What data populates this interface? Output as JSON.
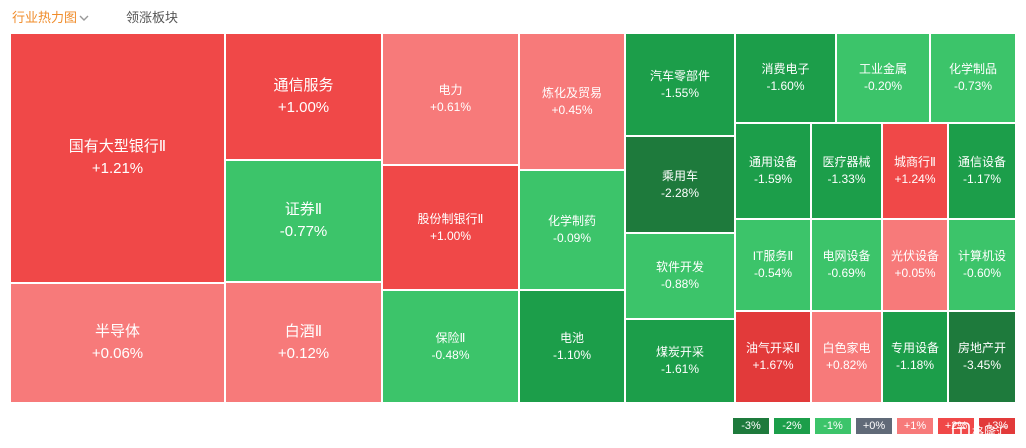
{
  "header": {
    "tab_heatmap": "行业热力图",
    "tab_leaders": "领涨板块"
  },
  "icons": {
    "dropdown": "chevron-down-icon",
    "watermark": "gelonghui-logo"
  },
  "colors": {
    "down_3": "#1e7a3c",
    "down_2": "#1c9e4a",
    "down_1": "#3cc46a",
    "flat": "#606a78",
    "up_1": "#f77a7a",
    "up_2": "#f04848",
    "up_3": "#e23a3a",
    "accent": "#f08c2a"
  },
  "chart_data": {
    "type": "treemap",
    "title": "",
    "items": [
      {
        "name": "国有大型银行Ⅱ",
        "value": "+1.21%",
        "change": 1.21
      },
      {
        "name": "半导体",
        "value": "+0.06%",
        "change": 0.06
      },
      {
        "name": "通信服务",
        "value": "+1.00%",
        "change": 1.0
      },
      {
        "name": "证券Ⅱ",
        "value": "-0.77%",
        "change": -0.77
      },
      {
        "name": "白酒Ⅱ",
        "value": "+0.12%",
        "change": 0.12
      },
      {
        "name": "电力",
        "value": "+0.61%",
        "change": 0.61
      },
      {
        "name": "炼化及贸易",
        "value": "+0.45%",
        "change": 0.45
      },
      {
        "name": "股份制银行Ⅱ",
        "value": "+1.00%",
        "change": 1.0
      },
      {
        "name": "化学制药",
        "value": "-0.09%",
        "change": -0.09
      },
      {
        "name": "保险Ⅱ",
        "value": "-0.48%",
        "change": -0.48
      },
      {
        "name": "电池",
        "value": "-1.10%",
        "change": -1.1
      },
      {
        "name": "汽车零部件",
        "value": "-1.55%",
        "change": -1.55
      },
      {
        "name": "乘用车",
        "value": "-2.28%",
        "change": -2.28
      },
      {
        "name": "软件开发",
        "value": "-0.88%",
        "change": -0.88
      },
      {
        "name": "煤炭开采",
        "value": "-1.61%",
        "change": -1.61
      },
      {
        "name": "消费电子",
        "value": "-1.60%",
        "change": -1.6
      },
      {
        "name": "工业金属",
        "value": "-0.20%",
        "change": -0.2
      },
      {
        "name": "化学制品",
        "value": "-0.73%",
        "change": -0.73
      },
      {
        "name": "通用设备",
        "value": "-1.59%",
        "change": -1.59
      },
      {
        "name": "医疗器械",
        "value": "-1.33%",
        "change": -1.33
      },
      {
        "name": "城商行Ⅱ",
        "value": "+1.24%",
        "change": 1.24
      },
      {
        "name": "通信设备",
        "value": "-1.17%",
        "change": -1.17
      },
      {
        "name": "IT服务Ⅱ",
        "value": "-0.54%",
        "change": -0.54
      },
      {
        "name": "电网设备",
        "value": "-0.69%",
        "change": -0.69
      },
      {
        "name": "光伏设备",
        "value": "+0.05%",
        "change": 0.05
      },
      {
        "name": "计算机设",
        "value": "-0.60%",
        "change": -0.6
      },
      {
        "name": "油气开采Ⅱ",
        "value": "+1.67%",
        "change": 1.67
      },
      {
        "name": "白色家电",
        "value": "+0.82%",
        "change": 0.82
      },
      {
        "name": "专用设备",
        "value": "-1.18%",
        "change": -1.18
      },
      {
        "name": "房地产开",
        "value": "-3.45%",
        "change": -3.45
      }
    ],
    "legend": [
      "-3%",
      "-2%",
      "-1%",
      "+0%",
      "+1%",
      "+2%",
      "+3%"
    ]
  },
  "watermark": {
    "text": "格隆汇"
  }
}
